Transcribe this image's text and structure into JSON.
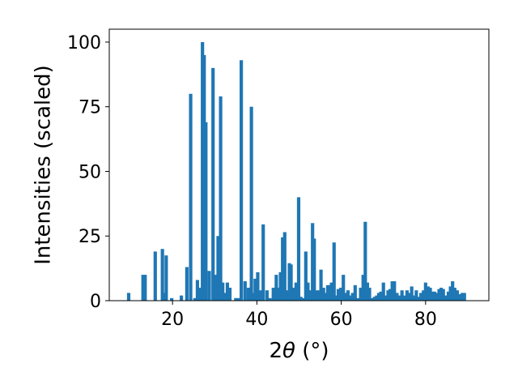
{
  "chart_data": {
    "type": "bar",
    "title": "",
    "xlabel_parts": {
      "num": "2",
      "sym": "θ",
      "rest": " (°)"
    },
    "ylabel": "Intensities (scaled)",
    "xlim": [
      5,
      95
    ],
    "ylim": [
      0,
      105
    ],
    "xticks": [
      {
        "value": 20,
        "label": "20"
      },
      {
        "value": 40,
        "label": "40"
      },
      {
        "value": 60,
        "label": "60"
      },
      {
        "value": 80,
        "label": "80"
      }
    ],
    "yticks": [
      {
        "value": 0,
        "label": "0"
      },
      {
        "value": 25,
        "label": "25"
      },
      {
        "value": 50,
        "label": "50"
      },
      {
        "value": 75,
        "label": "75"
      },
      {
        "value": 100,
        "label": "100"
      }
    ],
    "bar_width": 0.8,
    "color": "#1f77b4",
    "grid": false,
    "bars": [
      [
        9.6,
        3
      ],
      [
        13.0,
        10
      ],
      [
        13.5,
        10
      ],
      [
        15.9,
        19
      ],
      [
        17.6,
        20
      ],
      [
        18.0,
        3
      ],
      [
        18.5,
        17.5
      ],
      [
        19.8,
        1
      ],
      [
        22.1,
        2
      ],
      [
        23.4,
        13
      ],
      [
        24.3,
        80
      ],
      [
        25.3,
        1
      ],
      [
        25.9,
        8
      ],
      [
        26.4,
        5
      ],
      [
        27.1,
        100
      ],
      [
        27.5,
        95
      ],
      [
        27.9,
        69
      ],
      [
        28.7,
        11.5
      ],
      [
        29.6,
        90
      ],
      [
        30.2,
        10
      ],
      [
        30.8,
        25
      ],
      [
        31.4,
        79
      ],
      [
        31.9,
        7
      ],
      [
        32.5,
        3
      ],
      [
        33.0,
        7
      ],
      [
        33.6,
        5
      ],
      [
        35.0,
        1
      ],
      [
        35.6,
        1
      ],
      [
        36.3,
        93
      ],
      [
        37.2,
        7.5
      ],
      [
        38.0,
        5
      ],
      [
        38.7,
        75
      ],
      [
        39.2,
        3
      ],
      [
        39.6,
        8.5
      ],
      [
        40.2,
        11
      ],
      [
        40.8,
        4
      ],
      [
        41.5,
        29.5
      ],
      [
        42.4,
        4
      ],
      [
        43.1,
        1
      ],
      [
        43.9,
        5
      ],
      [
        44.6,
        10
      ],
      [
        45.1,
        5
      ],
      [
        45.6,
        11
      ],
      [
        46.1,
        24.5
      ],
      [
        46.6,
        26.5
      ],
      [
        47.1,
        4
      ],
      [
        47.7,
        14.5
      ],
      [
        48.1,
        14
      ],
      [
        48.8,
        5
      ],
      [
        49.3,
        7
      ],
      [
        49.9,
        40
      ],
      [
        50.4,
        1.5
      ],
      [
        51.0,
        1
      ],
      [
        51.6,
        19
      ],
      [
        52.1,
        7
      ],
      [
        52.6,
        4
      ],
      [
        53.2,
        30
      ],
      [
        53.6,
        24
      ],
      [
        54.1,
        4
      ],
      [
        54.7,
        4
      ],
      [
        55.2,
        12
      ],
      [
        55.8,
        5
      ],
      [
        56.2,
        3
      ],
      [
        56.8,
        6
      ],
      [
        57.2,
        6
      ],
      [
        57.7,
        7
      ],
      [
        58.3,
        22.5
      ],
      [
        58.8,
        2
      ],
      [
        59.3,
        4.5
      ],
      [
        59.9,
        5
      ],
      [
        60.5,
        10
      ],
      [
        61.0,
        3
      ],
      [
        61.6,
        4
      ],
      [
        62.2,
        2
      ],
      [
        62.7,
        3
      ],
      [
        63.3,
        6
      ],
      [
        64.0,
        1
      ],
      [
        64.6,
        5
      ],
      [
        65.2,
        10
      ],
      [
        65.7,
        30.5
      ],
      [
        66.2,
        7
      ],
      [
        66.7,
        5
      ],
      [
        67.3,
        1
      ],
      [
        67.9,
        1.5
      ],
      [
        68.4,
        2
      ],
      [
        68.9,
        3
      ],
      [
        69.4,
        3.5
      ],
      [
        70.0,
        7
      ],
      [
        70.5,
        2
      ],
      [
        71.1,
        4
      ],
      [
        71.6,
        4.5
      ],
      [
        72.1,
        7.5
      ],
      [
        72.6,
        7.5
      ],
      [
        73.2,
        3
      ],
      [
        73.8,
        2
      ],
      [
        74.4,
        4
      ],
      [
        75.0,
        2
      ],
      [
        75.6,
        4
      ],
      [
        76.2,
        3
      ],
      [
        76.7,
        5.5
      ],
      [
        77.3,
        2
      ],
      [
        77.8,
        4
      ],
      [
        78.3,
        1.5
      ],
      [
        78.9,
        3
      ],
      [
        79.5,
        4
      ],
      [
        80.0,
        7
      ],
      [
        80.6,
        5.5
      ],
      [
        81.1,
        5
      ],
      [
        81.6,
        3.5
      ],
      [
        82.1,
        3.5
      ],
      [
        82.6,
        3
      ],
      [
        83.2,
        4.5
      ],
      [
        83.7,
        5
      ],
      [
        84.2,
        4.5
      ],
      [
        84.8,
        2
      ],
      [
        85.4,
        3.5
      ],
      [
        85.9,
        5.5
      ],
      [
        86.4,
        7.5
      ],
      [
        86.9,
        5
      ],
      [
        87.5,
        4
      ],
      [
        88.1,
        2.5
      ],
      [
        88.7,
        3
      ],
      [
        89.2,
        3
      ]
    ]
  }
}
